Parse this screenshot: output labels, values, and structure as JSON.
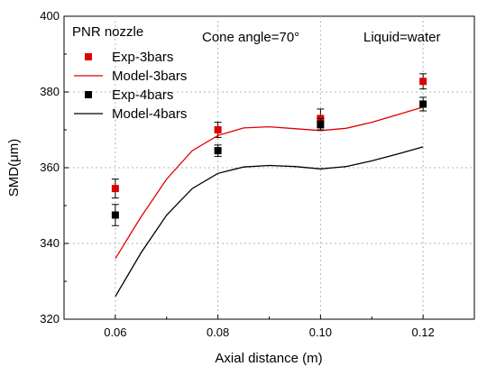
{
  "chart_data": {
    "type": "scatter",
    "xlabel": "Axial distance (m)",
    "ylabel": "SMD(μm)",
    "xlim": [
      0.05,
      0.13
    ],
    "ylim": [
      320,
      400
    ],
    "xticks": [
      "0.06",
      "0.08",
      "0.10",
      "0.12"
    ],
    "yticks": [
      "320",
      "340",
      "360",
      "380",
      "400"
    ],
    "grid": "dotted",
    "legend_position": "top-left",
    "annotations": {
      "left": "PNR nozzle",
      "center": "Cone angle=70°",
      "right": "Liquid=water"
    },
    "series": [
      {
        "name": "Exp-3bars",
        "kind": "scatter",
        "color": "#e00000",
        "x": [
          0.06,
          0.08,
          0.1,
          0.12
        ],
        "y": [
          354.5,
          370.0,
          373.0,
          382.8
        ],
        "err": [
          2.5,
          2.0,
          2.5,
          2.0
        ]
      },
      {
        "name": "Model-3bars",
        "kind": "line",
        "color": "#e00000",
        "x": [
          0.06,
          0.065,
          0.07,
          0.075,
          0.08,
          0.085,
          0.09,
          0.095,
          0.1,
          0.105,
          0.11,
          0.115,
          0.12
        ],
        "y": [
          336.0,
          347.0,
          357.0,
          364.5,
          368.5,
          370.5,
          370.8,
          370.3,
          369.8,
          370.4,
          372.0,
          374.0,
          376.0
        ]
      },
      {
        "name": "Exp-4bars",
        "kind": "scatter",
        "color": "#000000",
        "x": [
          0.06,
          0.08,
          0.1,
          0.12
        ],
        "y": [
          347.5,
          364.5,
          371.5,
          376.8
        ],
        "err": [
          2.8,
          1.5,
          1.5,
          1.8
        ]
      },
      {
        "name": "Model-4bars",
        "kind": "line",
        "color": "#000000",
        "x": [
          0.06,
          0.065,
          0.07,
          0.075,
          0.08,
          0.085,
          0.09,
          0.095,
          0.1,
          0.105,
          0.11,
          0.115,
          0.12
        ],
        "y": [
          326.0,
          337.5,
          347.5,
          354.5,
          358.5,
          360.2,
          360.6,
          360.3,
          359.7,
          360.3,
          361.8,
          363.6,
          365.5
        ]
      }
    ]
  }
}
